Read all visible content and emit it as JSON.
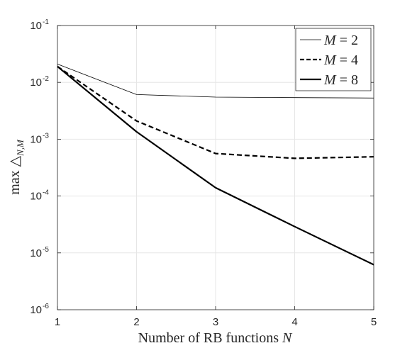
{
  "chart_data": {
    "type": "line",
    "title": "",
    "xlabel_text": "Number of RB functions",
    "xlabel_var": "N",
    "ylabel_prefix": "max",
    "ylabel_symbol": "△",
    "ylabel_subscript": "N,M",
    "xlim": [
      1,
      5
    ],
    "ylim": [
      1e-06,
      0.1
    ],
    "yscale": "log",
    "grid": true,
    "legend_position": "top-right",
    "x_ticks": [
      1,
      2,
      3,
      4,
      5
    ],
    "x_tick_labels": [
      "1",
      "2",
      "3",
      "4",
      "5"
    ],
    "y_ticks": [
      {
        "value": 0.1,
        "base": "10",
        "exp": "-1"
      },
      {
        "value": 0.01,
        "base": "10",
        "exp": "-2"
      },
      {
        "value": 0.001,
        "base": "10",
        "exp": "-3"
      },
      {
        "value": 0.0001,
        "base": "10",
        "exp": "-4"
      },
      {
        "value": 1e-05,
        "base": "10",
        "exp": "-5"
      },
      {
        "value": 1e-06,
        "base": "10",
        "exp": "-6"
      }
    ],
    "x": [
      1,
      2,
      3,
      4,
      5
    ],
    "series": [
      {
        "name": "M = 2",
        "legend_var": "M",
        "legend_value": "2",
        "style": "thin",
        "color": "#000000",
        "values": [
          0.021,
          0.0061,
          0.0055,
          0.0054,
          0.0053
        ]
      },
      {
        "name": "M = 4",
        "legend_var": "M",
        "legend_value": "4",
        "style": "dashed",
        "color": "#000000",
        "values": [
          0.019,
          0.0021,
          0.00056,
          0.00046,
          0.00049
        ]
      },
      {
        "name": "M = 8",
        "legend_var": "M",
        "legend_value": "8",
        "style": "thick",
        "color": "#000000",
        "values": [
          0.019,
          0.00135,
          0.00014,
          2.9e-05,
          6.2e-06
        ]
      }
    ]
  }
}
